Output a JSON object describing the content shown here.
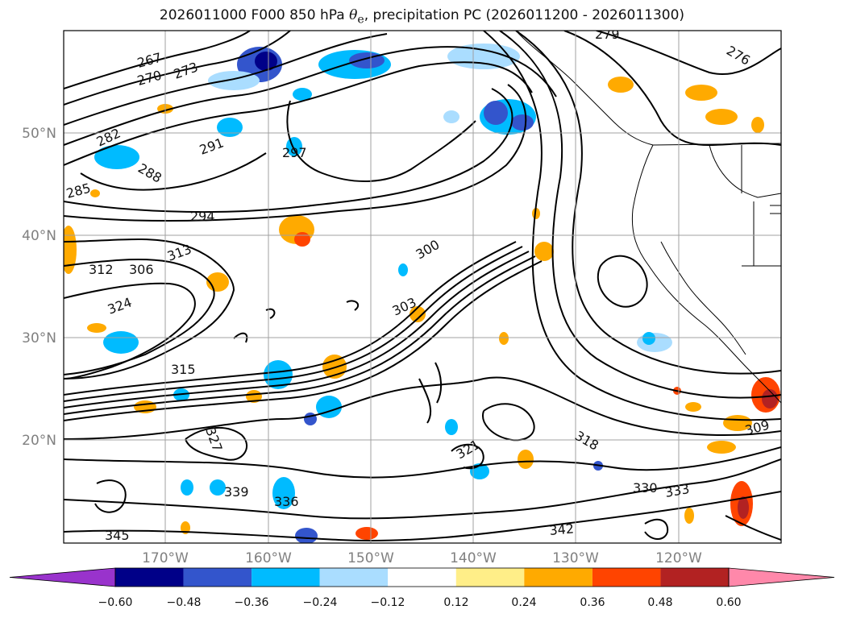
{
  "title": {
    "prefix": "2026011000 F000 850 hPa ",
    "symbol": "θ",
    "subscript": "e",
    "suffix": ", precipitation PC (2026011200 - 2026011300)"
  },
  "axes": {
    "lon_labels": [
      "170°W",
      "160°W",
      "150°W",
      "140°W",
      "130°W",
      "120°W"
    ],
    "lat_labels": [
      "50°N",
      "40°N",
      "30°N",
      "20°N"
    ]
  },
  "colorbar": {
    "labels": [
      "−0.60",
      "−0.48",
      "−0.36",
      "−0.24",
      "−0.12",
      "0.12",
      "0.24",
      "0.36",
      "0.48",
      "0.60"
    ],
    "colors": [
      "#9933cc",
      "#000088",
      "#3355cc",
      "#00bbff",
      "#aaddff",
      "#ffffff",
      "#ffee88",
      "#ffaa00",
      "#ff4400",
      "#b22222"
    ],
    "under_color": "#9933cc",
    "over_color": "#ff88aa"
  },
  "contour_labels": [
    "267",
    "270",
    "273",
    "276",
    "279",
    "282",
    "285",
    "288",
    "291",
    "294",
    "297",
    "300",
    "303",
    "306",
    "309",
    "312",
    "313",
    "315",
    "318",
    "321",
    "324",
    "327",
    "330",
    "333",
    "336",
    "339",
    "342",
    "345"
  ],
  "colors": {
    "contour": "#000000",
    "grid": "#a0a0a0",
    "land": "#000000"
  }
}
